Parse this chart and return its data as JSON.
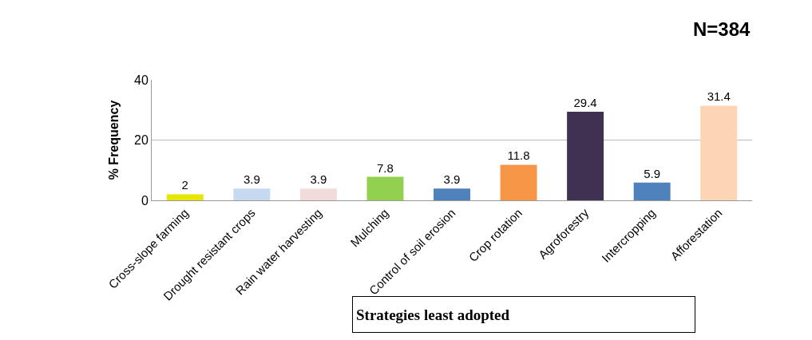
{
  "chart_data": {
    "type": "bar",
    "ylabel": "% Frequency",
    "categories": [
      "Cross-slope farming",
      "Drought resistant crops",
      "Rain water harvesting",
      "Mulching",
      "Control of soil erosion",
      "Crop rotation",
      "Agroforestry",
      "Intercropping",
      "Afforestation"
    ],
    "values": [
      2,
      3.9,
      3.9,
      7.8,
      3.9,
      11.8,
      29.4,
      5.9,
      31.4
    ],
    "colors": [
      "#e6e600",
      "#c6d9f1",
      "#f2dcdb",
      "#92d050",
      "#4f81bd",
      "#f79646",
      "#3f3151",
      "#4f81bd",
      "#fcd5b5"
    ],
    "ylim": [
      0,
      40
    ],
    "yticks": [
      0,
      20,
      40
    ],
    "grid": "y",
    "data_labels": true,
    "annotations": [
      "N=384",
      "Strategies least adopted"
    ]
  }
}
